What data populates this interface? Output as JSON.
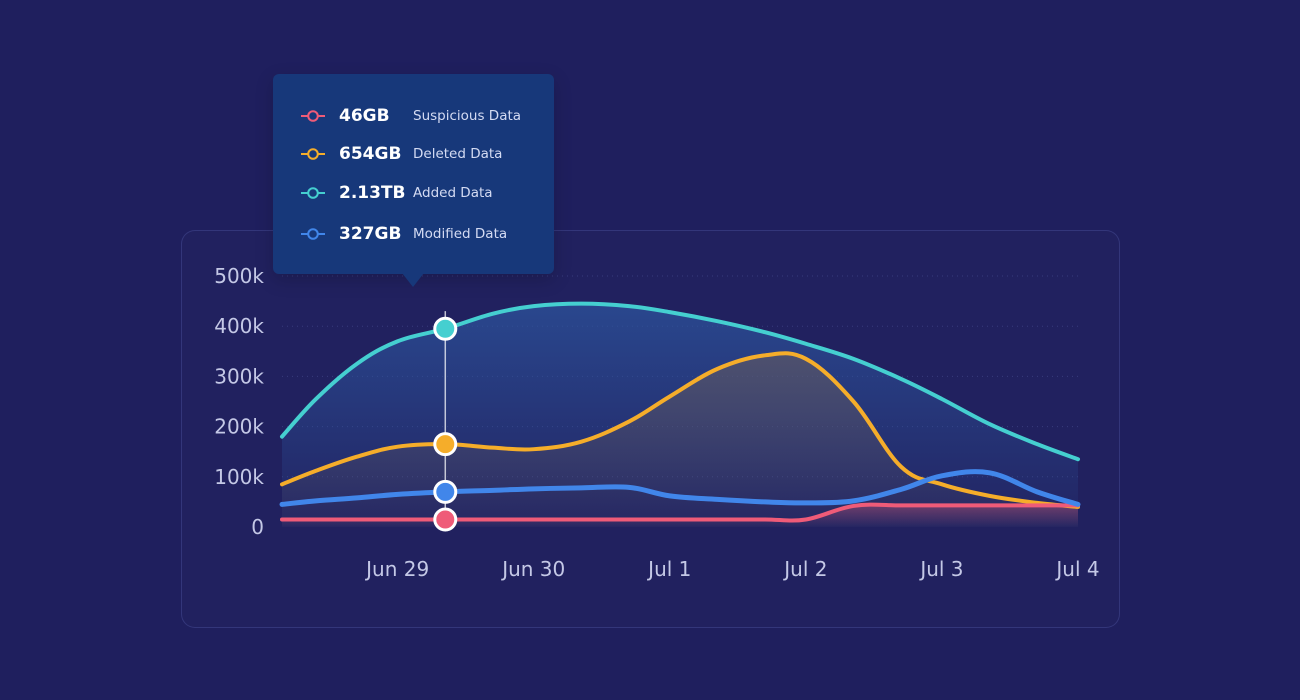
{
  "tooltip": {
    "items": [
      {
        "value": "46GB",
        "label": "Suspicious Data",
        "color": "#ef5b78"
      },
      {
        "value": "654GB",
        "label": "Deleted Data",
        "color": "#f5ad2a"
      },
      {
        "value": "2.13TB",
        "label": "Added Data",
        "color": "#45cfd0"
      },
      {
        "value": "327GB",
        "label": "Modified Data",
        "color": "#4186ea"
      }
    ]
  },
  "chart_data": {
    "type": "line",
    "x": [
      28.15,
      28.4,
      28.7,
      29.0,
      29.35,
      29.7,
      30.0,
      30.35,
      30.7,
      31.0,
      31.35,
      31.7,
      32.0,
      32.35,
      32.7,
      33.0,
      33.35,
      33.7,
      34.0
    ],
    "categories": [
      "Jun 29",
      "Jun 30",
      "Jul 1",
      "Jul 2",
      "Jul 3",
      "Jul 4"
    ],
    "category_x": [
      29,
      30,
      31,
      32,
      33,
      34
    ],
    "ylim": [
      0,
      500000
    ],
    "yticks": [
      0,
      100000,
      200000,
      300000,
      400000,
      500000
    ],
    "ytick_labels": [
      "0",
      "100k",
      "200k",
      "300k",
      "400k",
      "500k"
    ],
    "highlight_x": 29.35,
    "series": [
      {
        "name": "Added Data",
        "color": "#45cfd0",
        "values": [
          180000,
          255000,
          325000,
          370000,
          395000,
          425000,
          440000,
          445000,
          440000,
          428000,
          410000,
          388000,
          365000,
          335000,
          295000,
          255000,
          205000,
          165000,
          135000
        ]
      },
      {
        "name": "Deleted Data",
        "color": "#f5ad2a",
        "values": [
          85000,
          112000,
          140000,
          160000,
          165000,
          158000,
          155000,
          170000,
          210000,
          260000,
          315000,
          342000,
          335000,
          250000,
          120000,
          85000,
          62000,
          48000,
          40000
        ]
      },
      {
        "name": "Modified Data",
        "color": "#4186ea",
        "values": [
          45000,
          52000,
          58000,
          65000,
          70000,
          73000,
          76000,
          78000,
          79000,
          62000,
          55000,
          50000,
          48000,
          52000,
          75000,
          102000,
          108000,
          70000,
          45000
        ]
      },
      {
        "name": "Suspicious Data",
        "color": "#ef5b78",
        "values": [
          15000,
          15000,
          15000,
          15000,
          15000,
          15000,
          15000,
          15000,
          15000,
          15000,
          15000,
          15000,
          15000,
          42000,
          43000,
          43000,
          43000,
          43000,
          43000
        ]
      }
    ]
  }
}
